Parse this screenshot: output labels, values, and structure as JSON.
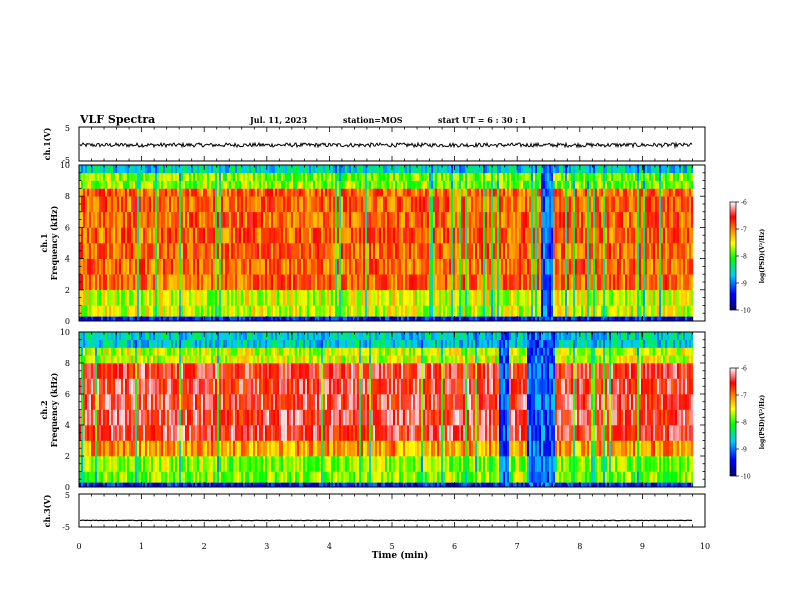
{
  "header": {
    "title": "VLF Spectra",
    "date": "Jul. 11, 2023",
    "station": "station=MOS",
    "start": "start UT =  6 : 30 : 1"
  },
  "chart_data": [
    {
      "type": "line",
      "panel": "ch1-waveform",
      "ylabel": "ch.1(V)",
      "ylim": [
        -5,
        5
      ],
      "yticks": [
        "5",
        "-5"
      ],
      "baseline_value": -0.3,
      "xlim": [
        0,
        10
      ]
    },
    {
      "type": "heatmap",
      "panel": "ch1-spectrogram",
      "ylabel_line1": "ch.1",
      "ylabel_line2": "Frequency (kHz)",
      "ylim": [
        0,
        10
      ],
      "yticks": [
        "0",
        "2",
        "4",
        "6",
        "8",
        "10"
      ],
      "xlim": [
        0,
        10
      ],
      "data_end_min": 9.8,
      "gaps_min": [
        [
          7.35,
          7.55
        ]
      ],
      "colorbar": {
        "label": "log(PSD)(V²/Hz)",
        "range": [
          -10,
          -6
        ],
        "ticks": [
          "-6",
          "-7",
          "-8",
          "-9",
          "-10"
        ]
      }
    },
    {
      "type": "heatmap",
      "panel": "ch2-spectrogram",
      "ylabel_line1": "ch.2",
      "ylabel_line2": "Frequency (kHz)",
      "ylim": [
        0,
        10
      ],
      "yticks": [
        "0",
        "2",
        "4",
        "6",
        "8",
        "10"
      ],
      "xlim": [
        0,
        10
      ],
      "data_end_min": 9.8,
      "gaps_min": [
        [
          6.7,
          6.85
        ],
        [
          7.15,
          7.6
        ]
      ],
      "colorbar": {
        "label": "log(PSD)(V²/Hz)",
        "range": [
          -10,
          -6
        ],
        "ticks": [
          "-6",
          "-7",
          "-8",
          "-9",
          "-10"
        ]
      }
    },
    {
      "type": "line",
      "panel": "ch3-waveform",
      "ylabel": "ch.3(V)",
      "ylim": [
        -5,
        5
      ],
      "yticks": [
        "5",
        "-5"
      ],
      "baseline_value": -3.0,
      "xlim": [
        0,
        10
      ]
    }
  ],
  "x_axis": {
    "label": "Time (min)",
    "ticks": [
      "0",
      "1",
      "2",
      "3",
      "4",
      "5",
      "6",
      "7",
      "8",
      "9",
      "10"
    ]
  },
  "colors": {
    "scale": [
      "#00006e",
      "#0000ff",
      "#00c8ff",
      "#00ff00",
      "#ffff00",
      "#ff8000",
      "#ff0000",
      "#ffffff"
    ]
  }
}
